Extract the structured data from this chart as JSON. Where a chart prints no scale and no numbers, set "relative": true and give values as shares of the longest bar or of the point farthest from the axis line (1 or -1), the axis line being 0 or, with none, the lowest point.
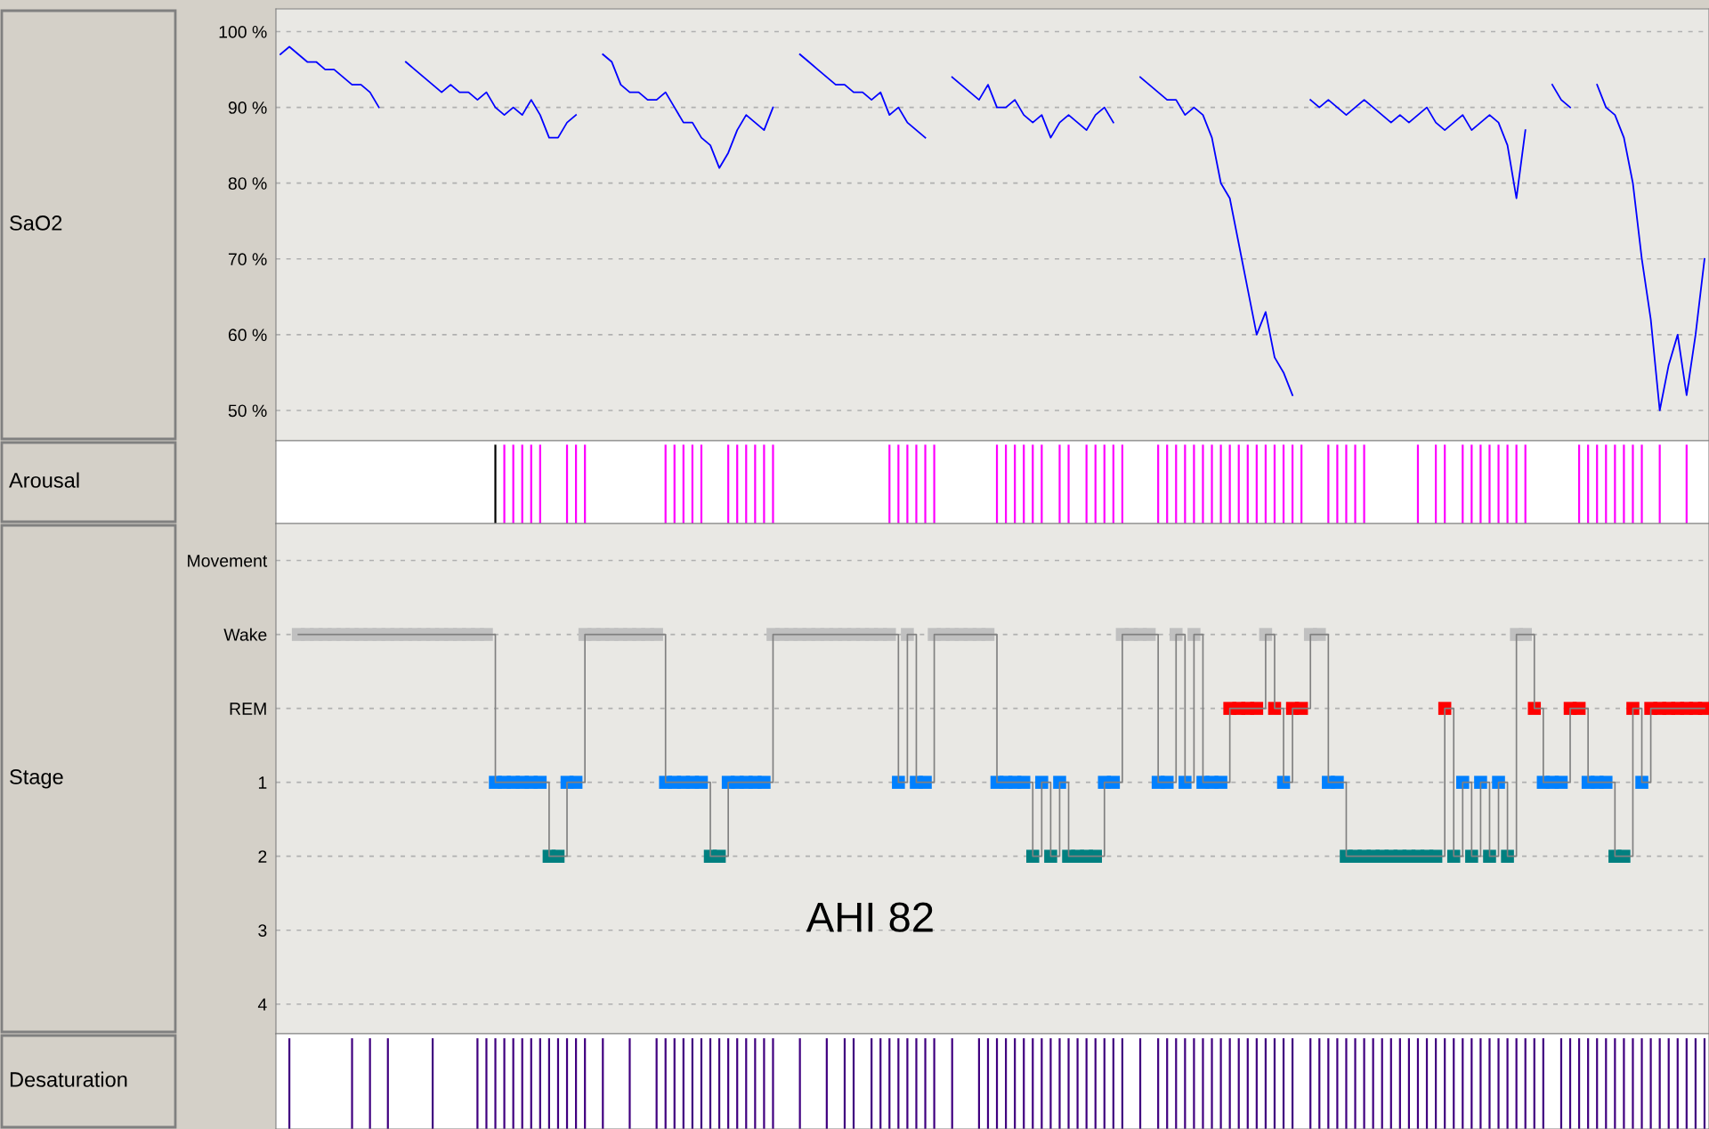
{
  "chart_data": [
    {
      "type": "line",
      "ylabel": "SaO2",
      "categories": [
        null,
        null,
        null,
        null,
        null,
        null,
        null,
        null,
        null,
        null,
        null,
        null,
        null,
        null,
        null,
        null,
        null,
        null,
        null,
        null,
        null,
        null,
        null,
        null,
        null,
        null,
        null,
        null,
        null,
        null,
        null,
        null,
        null,
        null,
        null,
        null,
        null,
        null,
        null,
        null,
        null,
        null,
        null,
        null,
        null,
        null,
        null,
        null,
        null,
        null,
        null,
        null,
        null,
        null,
        null,
        null,
        null,
        null,
        null,
        null,
        null,
        null,
        null,
        null,
        null,
        null,
        null,
        null,
        null,
        null,
        null,
        null,
        null,
        null,
        null,
        null,
        null,
        null,
        null,
        null,
        null,
        null,
        null,
        null,
        null,
        null,
        null,
        null,
        null,
        null,
        null,
        null,
        null,
        null,
        null,
        null,
        null,
        null,
        null,
        null,
        null,
        null,
        null,
        null,
        null,
        null,
        null,
        null,
        null,
        null,
        null,
        null,
        null,
        null,
        null,
        null,
        null,
        null,
        null,
        null,
        null,
        null,
        null,
        null,
        null,
        null,
        null,
        null,
        null,
        null,
        null,
        null,
        null,
        null,
        null,
        null,
        null,
        null,
        null,
        null,
        null,
        null,
        null,
        null,
        null,
        null,
        null,
        null,
        null,
        null,
        null,
        null,
        null,
        null,
        null,
        null,
        null,
        null,
        null,
        null
      ],
      "series": [
        {
          "color": "#0000ff",
          "values": [
            97,
            98,
            97,
            96,
            96,
            95,
            95,
            94,
            93,
            93,
            92,
            90,
            null,
            null,
            96,
            95,
            94,
            93,
            92,
            93,
            92,
            92,
            91,
            92,
            90,
            89,
            90,
            89,
            91,
            89,
            86,
            86,
            88,
            89,
            null,
            null,
            97,
            96,
            93,
            92,
            92,
            91,
            91,
            92,
            90,
            88,
            88,
            86,
            85,
            82,
            84,
            87,
            89,
            88,
            87,
            90,
            null,
            null,
            97,
            96,
            95,
            94,
            93,
            93,
            92,
            92,
            91,
            92,
            89,
            90,
            88,
            87,
            86,
            null,
            null,
            94,
            93,
            92,
            91,
            93,
            90,
            90,
            91,
            89,
            88,
            89,
            86,
            88,
            89,
            88,
            87,
            89,
            90,
            88,
            null,
            null,
            94,
            93,
            92,
            91,
            91,
            89,
            90,
            89,
            86,
            80,
            78,
            72,
            66,
            60,
            63,
            57,
            55,
            52,
            null,
            91,
            90,
            91,
            90,
            89,
            90,
            91,
            90,
            89,
            88,
            89,
            88,
            89,
            90,
            88,
            87,
            88,
            89,
            87,
            88,
            89,
            88,
            85,
            78,
            87,
            null,
            null,
            93,
            91,
            90,
            null,
            null,
            93,
            90,
            89,
            86,
            80,
            70,
            62,
            50,
            56,
            60,
            52,
            60,
            70
          ]
        }
      ],
      "ylim": [
        46,
        103
      ],
      "yticks": [
        {
          "value": 50,
          "label": "50 %"
        },
        {
          "value": 60,
          "label": "60 %"
        },
        {
          "value": 70,
          "label": "70 %"
        },
        {
          "value": 80,
          "label": "80 %"
        },
        {
          "value": 90,
          "label": "90 %"
        },
        {
          "value": 100,
          "label": "100 %"
        }
      ],
      "grid": "y",
      "tick_labels": "y"
    },
    {
      "type": "bar",
      "ylabel": "Arousal",
      "relative": true,
      "tick_labels": false,
      "categories": [
        null,
        null,
        null,
        null,
        null,
        null,
        null,
        null,
        null,
        null,
        null,
        null,
        null,
        null,
        null,
        null,
        null,
        null,
        null,
        null,
        null,
        null,
        null,
        null,
        null,
        null,
        null,
        null,
        null,
        null,
        null,
        null,
        null,
        null,
        null,
        null,
        null,
        null,
        null,
        null,
        null,
        null,
        null,
        null,
        null,
        null,
        null,
        null,
        null,
        null,
        null,
        null,
        null,
        null,
        null,
        null,
        null,
        null,
        null,
        null,
        null,
        null,
        null,
        null,
        null,
        null,
        null,
        null,
        null,
        null,
        null,
        null,
        null,
        null,
        null,
        null,
        null,
        null,
        null,
        null,
        null,
        null,
        null,
        null,
        null,
        null,
        null,
        null,
        null,
        null,
        null,
        null,
        null,
        null,
        null,
        null,
        null,
        null,
        null,
        null,
        null,
        null,
        null,
        null,
        null,
        null,
        null,
        null,
        null,
        null,
        null,
        null,
        null,
        null,
        null,
        null,
        null,
        null,
        null,
        null,
        null,
        null,
        null,
        null,
        null,
        null,
        null,
        null,
        null,
        null,
        null,
        null,
        null,
        null,
        null,
        null,
        null,
        null,
        null,
        null,
        null,
        null,
        null,
        null,
        null,
        null,
        null,
        null,
        null,
        null,
        null,
        null,
        null,
        null,
        null,
        null,
        null,
        null,
        null,
        null
      ],
      "series": [
        {
          "color": "#ff00ff",
          "values": [
            null,
            null,
            null,
            null,
            null,
            null,
            null,
            null,
            null,
            null,
            null,
            null,
            null,
            null,
            null,
            null,
            null,
            null,
            null,
            null,
            null,
            null,
            null,
            null,
            null,
            1,
            1,
            1,
            1,
            1,
            null,
            null,
            1,
            1,
            1,
            null,
            null,
            null,
            null,
            null,
            null,
            null,
            null,
            1,
            1,
            1,
            1,
            1,
            null,
            null,
            1,
            1,
            1,
            1,
            1,
            1,
            null,
            null,
            null,
            null,
            null,
            null,
            null,
            null,
            null,
            null,
            null,
            null,
            1,
            1,
            1,
            1,
            1,
            1,
            null,
            null,
            null,
            null,
            null,
            null,
            1,
            1,
            1,
            1,
            1,
            1,
            null,
            1,
            1,
            null,
            1,
            1,
            1,
            1,
            1,
            null,
            null,
            null,
            1,
            1,
            1,
            1,
            1,
            1,
            1,
            1,
            1,
            1,
            1,
            1,
            1,
            1,
            1,
            1,
            1,
            null,
            null,
            1,
            1,
            1,
            1,
            1,
            null,
            null,
            null,
            null,
            null,
            1,
            null,
            1,
            1,
            null,
            1,
            1,
            1,
            1,
            1,
            1,
            1,
            1,
            null,
            null,
            null,
            null,
            null,
            1,
            1,
            1,
            1,
            1,
            1,
            1,
            1,
            null,
            1,
            null,
            null,
            1,
            null,
            null
          ]
        },
        {
          "color": "#000000",
          "values": [
            null,
            null,
            null,
            null,
            null,
            null,
            null,
            null,
            null,
            null,
            null,
            null,
            null,
            null,
            null,
            null,
            null,
            null,
            null,
            null,
            null,
            null,
            null,
            null,
            1,
            null,
            null,
            null,
            null,
            null,
            null,
            null,
            null,
            null,
            null,
            null,
            null,
            null,
            null,
            null,
            null,
            null,
            null,
            null,
            null,
            null,
            null,
            null,
            null,
            null,
            null,
            null,
            null,
            null,
            null,
            null,
            null,
            null,
            null,
            null,
            null,
            null,
            null,
            null,
            null,
            null,
            null,
            null,
            null,
            null,
            null,
            null,
            null,
            null,
            null,
            null,
            null,
            null,
            null,
            null,
            null,
            null,
            null,
            null,
            null,
            null,
            null,
            null,
            null,
            null,
            null,
            null,
            null,
            null,
            null,
            null,
            null,
            null,
            null,
            null,
            null,
            null,
            null,
            null,
            null,
            null,
            null,
            null,
            null,
            null,
            null,
            null,
            null,
            null,
            null,
            null,
            null,
            null,
            null,
            null,
            null,
            null,
            null,
            null,
            null,
            null,
            null,
            null,
            null,
            null,
            null,
            null,
            null,
            null,
            null,
            null,
            null,
            null,
            null,
            null,
            null,
            null,
            null,
            null,
            null,
            null,
            null,
            null,
            null,
            null,
            null,
            null,
            null,
            null,
            null,
            null,
            null,
            null,
            null,
            null
          ]
        }
      ]
    },
    {
      "type": "step",
      "ylabel": "Stage",
      "annotations": [
        "AHI 82"
      ],
      "categories": [
        null,
        null,
        null,
        null,
        null,
        null,
        null,
        null,
        null,
        null,
        null,
        null,
        null,
        null,
        null,
        null,
        null,
        null,
        null,
        null,
        null,
        null,
        null,
        null,
        null,
        null,
        null,
        null,
        null,
        null,
        null,
        null,
        null,
        null,
        null,
        null,
        null,
        null,
        null,
        null,
        null,
        null,
        null,
        null,
        null,
        null,
        null,
        null,
        null,
        null,
        null,
        null,
        null,
        null,
        null,
        null,
        null,
        null,
        null,
        null,
        null,
        null,
        null,
        null,
        null,
        null,
        null,
        null,
        null,
        null,
        null,
        null,
        null,
        null,
        null,
        null,
        null,
        null,
        null,
        null,
        null,
        null,
        null,
        null,
        null,
        null,
        null,
        null,
        null,
        null,
        null,
        null,
        null,
        null,
        null,
        null,
        null,
        null,
        null,
        null,
        null,
        null,
        null,
        null,
        null,
        null,
        null,
        null,
        null,
        null,
        null,
        null,
        null,
        null,
        null,
        null,
        null,
        null,
        null,
        null,
        null,
        null,
        null,
        null,
        null,
        null,
        null,
        null,
        null,
        null,
        null,
        null,
        null,
        null,
        null,
        null,
        null,
        null,
        null,
        null,
        null,
        null,
        null,
        null,
        null,
        null,
        null,
        null,
        null,
        null,
        null,
        null,
        null,
        null,
        null,
        null,
        null,
        null,
        null,
        null
      ],
      "series": [
        {
          "color": "#808080",
          "values": [
            null,
            null,
            -1,
            -1,
            -1,
            -1,
            -1,
            -1,
            -1,
            -1,
            -1,
            -1,
            -1,
            -1,
            -1,
            -1,
            -1,
            -1,
            -1,
            -1,
            -1,
            -1,
            -1,
            -1,
            1,
            1,
            1,
            1,
            1,
            1,
            2,
            2,
            1,
            1,
            -1,
            -1,
            -1,
            -1,
            -1,
            -1,
            -1,
            -1,
            -1,
            1,
            1,
            1,
            1,
            1,
            2,
            2,
            1,
            1,
            1,
            1,
            1,
            -1,
            -1,
            -1,
            -1,
            -1,
            -1,
            -1,
            -1,
            -1,
            -1,
            -1,
            -1,
            -1,
            -1,
            1,
            -1,
            1,
            1,
            -1,
            -1,
            -1,
            -1,
            -1,
            -1,
            -1,
            1,
            1,
            1,
            1,
            2,
            1,
            2,
            1,
            2,
            2,
            2,
            2,
            1,
            1,
            -1,
            -1,
            -1,
            -1,
            1,
            1,
            -1,
            1,
            -1,
            1,
            1,
            1,
            0,
            0,
            0,
            0,
            -1,
            0,
            1,
            0,
            0,
            -1,
            -1,
            1,
            1,
            2,
            2,
            2,
            2,
            2,
            2,
            2,
            2,
            2,
            2,
            2,
            0,
            2,
            1,
            2,
            1,
            2,
            1,
            2,
            -1,
            -1,
            0,
            1,
            1,
            1,
            0,
            0,
            1,
            1,
            1,
            2,
            2,
            0,
            1,
            0,
            0,
            0,
            0,
            0,
            0,
            0
          ],
          "colors": [
            null,
            null,
            "#c0c0c0",
            "#c0c0c0",
            "#c0c0c0",
            "#c0c0c0",
            "#c0c0c0",
            "#c0c0c0",
            "#c0c0c0",
            "#c0c0c0",
            "#c0c0c0",
            "#c0c0c0",
            "#c0c0c0",
            "#c0c0c0",
            "#c0c0c0",
            "#c0c0c0",
            "#c0c0c0",
            "#c0c0c0",
            "#c0c0c0",
            "#c0c0c0",
            "#c0c0c0",
            "#c0c0c0",
            "#c0c0c0",
            "#c0c0c0",
            "#0080ff",
            "#0080ff",
            "#0080ff",
            "#0080ff",
            "#0080ff",
            "#0080ff",
            "#008080",
            "#008080",
            "#0080ff",
            "#0080ff",
            "#c0c0c0",
            "#c0c0c0",
            "#c0c0c0",
            "#c0c0c0",
            "#c0c0c0",
            "#c0c0c0",
            "#c0c0c0",
            "#c0c0c0",
            "#c0c0c0",
            "#0080ff",
            "#0080ff",
            "#0080ff",
            "#0080ff",
            "#0080ff",
            "#008080",
            "#008080",
            "#0080ff",
            "#0080ff",
            "#0080ff",
            "#0080ff",
            "#0080ff",
            "#c0c0c0",
            "#c0c0c0",
            "#c0c0c0",
            "#c0c0c0",
            "#c0c0c0",
            "#c0c0c0",
            "#c0c0c0",
            "#c0c0c0",
            "#c0c0c0",
            "#c0c0c0",
            "#c0c0c0",
            "#c0c0c0",
            "#c0c0c0",
            "#c0c0c0",
            "#0080ff",
            "#c0c0c0",
            "#0080ff",
            "#0080ff",
            "#c0c0c0",
            "#c0c0c0",
            "#c0c0c0",
            "#c0c0c0",
            "#c0c0c0",
            "#c0c0c0",
            "#c0c0c0",
            "#0080ff",
            "#0080ff",
            "#0080ff",
            "#0080ff",
            "#008080",
            "#0080ff",
            "#008080",
            "#0080ff",
            "#008080",
            "#008080",
            "#008080",
            "#008080",
            "#0080ff",
            "#0080ff",
            "#c0c0c0",
            "#c0c0c0",
            "#c0c0c0",
            "#c0c0c0",
            "#0080ff",
            "#0080ff",
            "#c0c0c0",
            "#0080ff",
            "#c0c0c0",
            "#0080ff",
            "#0080ff",
            "#0080ff",
            "#ff0000",
            "#ff0000",
            "#ff0000",
            "#ff0000",
            "#c0c0c0",
            "#ff0000",
            "#0080ff",
            "#ff0000",
            "#ff0000",
            "#c0c0c0",
            "#c0c0c0",
            "#0080ff",
            "#0080ff",
            "#008080",
            "#008080",
            "#008080",
            "#008080",
            "#008080",
            "#008080",
            "#008080",
            "#008080",
            "#008080",
            "#008080",
            "#008080",
            "#ff0000",
            "#008080",
            "#0080ff",
            "#008080",
            "#0080ff",
            "#008080",
            "#0080ff",
            "#008080",
            "#c0c0c0",
            "#c0c0c0",
            "#ff0000",
            "#0080ff",
            "#0080ff",
            "#0080ff",
            "#ff0000",
            "#ff0000",
            "#0080ff",
            "#0080ff",
            "#0080ff",
            "#008080",
            "#008080",
            "#ff0000",
            "#0080ff",
            "#ff0000",
            "#ff0000",
            "#ff0000",
            "#ff0000",
            "#ff0000",
            "#ff0000",
            "#ff0000"
          ]
        }
      ],
      "marker": "square",
      "ylim": [
        4.4,
        -2.5
      ],
      "yticks": [
        4,
        3,
        2,
        1,
        {
          "value": 0,
          "label": "REM"
        },
        {
          "value": -1,
          "label": "Wake"
        },
        {
          "value": -2,
          "label": "Movement"
        }
      ],
      "grid": "y",
      "tick_labels": "y"
    },
    {
      "type": "bar",
      "ylabel": "Desaturation",
      "relative": true,
      "tick_labels": false,
      "categories": [
        null,
        null,
        null,
        null,
        null,
        null,
        null,
        null,
        null,
        null,
        null,
        null,
        null,
        null,
        null,
        null,
        null,
        null,
        null,
        null,
        null,
        null,
        null,
        null,
        null,
        null,
        null,
        null,
        null,
        null,
        null,
        null,
        null,
        null,
        null,
        null,
        null,
        null,
        null,
        null,
        null,
        null,
        null,
        null,
        null,
        null,
        null,
        null,
        null,
        null,
        null,
        null,
        null,
        null,
        null,
        null,
        null,
        null,
        null,
        null,
        null,
        null,
        null,
        null,
        null,
        null,
        null,
        null,
        null,
        null,
        null,
        null,
        null,
        null,
        null,
        null,
        null,
        null,
        null,
        null,
        null,
        null,
        null,
        null,
        null,
        null,
        null,
        null,
        null,
        null,
        null,
        null,
        null,
        null,
        null,
        null,
        null,
        null,
        null,
        null,
        null,
        null,
        null,
        null,
        null,
        null,
        null,
        null,
        null,
        null,
        null,
        null,
        null,
        null,
        null,
        null,
        null,
        null,
        null,
        null,
        null,
        null,
        null,
        null,
        null,
        null,
        null,
        null,
        null,
        null,
        null,
        null,
        null,
        null,
        null,
        null,
        null,
        null,
        null,
        null,
        null,
        null,
        null,
        null,
        null,
        null,
        null,
        null,
        null,
        null,
        null,
        null,
        null,
        null,
        null,
        null,
        null,
        null,
        null,
        null
      ],
      "series": [
        {
          "color": "#400080",
          "values": [
            null,
            1,
            null,
            null,
            null,
            null,
            null,
            null,
            1,
            null,
            1,
            null,
            1,
            null,
            null,
            null,
            null,
            1,
            null,
            null,
            null,
            null,
            1,
            1,
            1,
            1,
            1,
            1,
            1,
            1,
            1,
            1,
            1,
            1,
            1,
            null,
            1,
            null,
            null,
            1,
            null,
            null,
            1,
            1,
            1,
            1,
            1,
            1,
            1,
            1,
            1,
            1,
            1,
            1,
            1,
            1,
            null,
            null,
            1,
            null,
            null,
            1,
            null,
            1,
            1,
            null,
            1,
            1,
            1,
            1,
            1,
            1,
            1,
            1,
            null,
            1,
            null,
            null,
            1,
            1,
            1,
            1,
            1,
            1,
            1,
            1,
            1,
            1,
            1,
            1,
            1,
            1,
            1,
            1,
            1,
            null,
            1,
            null,
            1,
            1,
            1,
            1,
            1,
            1,
            1,
            1,
            1,
            1,
            1,
            1,
            1,
            1,
            1,
            1,
            null,
            1,
            1,
            1,
            1,
            1,
            1,
            1,
            1,
            1,
            1,
            1,
            1,
            1,
            1,
            1,
            1,
            1,
            1,
            1,
            1,
            1,
            1,
            1,
            1,
            1,
            1,
            1,
            null,
            1,
            1,
            1,
            1,
            1,
            1,
            1,
            1,
            1,
            1,
            1,
            1,
            1,
            1,
            1,
            1,
            1
          ]
        }
      ]
    }
  ]
}
